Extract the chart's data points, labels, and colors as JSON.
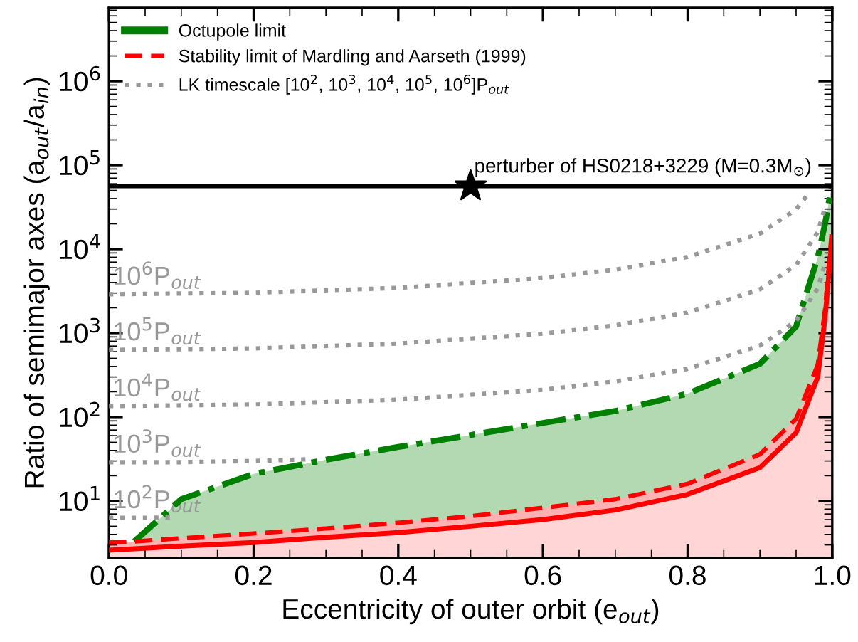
{
  "chart_data": {
    "type": "line",
    "log": "y",
    "legend": "top left",
    "xlabel": "Eccentricity of outer orbit (e$_{out}$)",
    "ylabel": "Ratio of semimajor axes (a$_{out}$/a$_{in}$)",
    "xlim": [
      0.0,
      1.0
    ],
    "xticks": [
      {
        "value": 0.0,
        "label": "0.0"
      },
      0.2,
      0.4,
      0.6,
      0.8,
      {
        "value": 1.0,
        "label": "1.0"
      }
    ],
    "ylim": [
      2.1,
      7500000
    ],
    "yticks": [
      {
        "value": 10,
        "label": "10$^{1}$"
      },
      {
        "value": 100,
        "label": "10$^{2}$"
      },
      {
        "value": 1000,
        "label": "10$^{3}$"
      },
      {
        "value": 10000,
        "label": "10$^{4}$"
      },
      {
        "value": 100000,
        "label": "10$^{5}$"
      },
      {
        "value": 1000000,
        "label": "10$^{6}$"
      }
    ],
    "x": [
      0.0,
      0.035,
      0.1,
      0.2,
      0.3,
      0.4,
      0.5,
      0.6,
      0.7,
      0.8,
      0.9,
      0.95,
      0.98,
      0.99,
      0.999
    ],
    "series": [
      {
        "type": "area",
        "name": "Octupole limit",
        "color": "#008000",
        "line_style": "dashdot",
        "values": [
          null,
          3.3,
          10.5,
          21,
          31,
          44,
          61,
          85,
          118,
          190,
          430,
          1200,
          8000,
          20000,
          55000
        ]
      },
      {
        "type": "area",
        "name": "Stability limit of Mardling and Aarseth (1999)",
        "color": "#ff0000",
        "line_style": "dashed",
        "values": [
          3.2,
          3.3,
          3.6,
          4.1,
          4.7,
          5.5,
          6.6,
          8.3,
          10.5,
          16,
          36,
          95,
          420,
          1900,
          15000
        ]
      },
      {
        "type": "area",
        "color": "#ff0000",
        "line_style": "solid",
        "values": [
          2.6,
          2.7,
          2.9,
          3.2,
          3.7,
          4.2,
          5.0,
          6.0,
          7.8,
          12,
          25,
          65,
          300,
          1500,
          12000
        ]
      },
      {
        "name": "LK timescale [10$^{2}$, 10$^{3}$, 10$^{4}$, 10$^{5}$, 10$^{6}$]P$_{out}$",
        "color": "#999999",
        "line_style": "dotted",
        "x": [
          0.0,
          0.05,
          0.09
        ],
        "values": [
          6.3,
          6.3,
          6.4
        ]
      },
      {
        "color": "#999999",
        "line_style": "dotted",
        "x": [
          0.0,
          0.1,
          0.2,
          0.28
        ],
        "values": [
          29,
          29,
          30,
          31.5
        ]
      },
      {
        "color": "#999999",
        "line_style": "dotted",
        "x": [
          0.0,
          0.2,
          0.4,
          0.6,
          0.7,
          0.8,
          0.9,
          0.95,
          0.98,
          0.99
        ],
        "values": [
          135,
          141,
          161,
          211,
          265,
          375,
          710,
          1390,
          3400,
          6800
        ]
      },
      {
        "color": "#999999",
        "line_style": "dotted",
        "x": [
          0.0,
          0.2,
          0.4,
          0.6,
          0.7,
          0.8,
          0.9,
          0.95,
          0.98,
          0.99
        ],
        "values": [
          630,
          656,
          750,
          984,
          1235,
          1750,
          3316,
          6462,
          15900,
          31700
        ]
      },
      {
        "color": "#999999",
        "line_style": "dotted",
        "x": [
          0.0,
          0.2,
          0.4,
          0.6,
          0.7,
          0.8,
          0.9,
          0.95,
          0.97
        ],
        "values": [
          2900,
          3020,
          3450,
          4530,
          5690,
          8060,
          15300,
          29700,
          49000
        ]
      },
      {
        "type": "scatter",
        "color": "#000000",
        "marker": "star",
        "x": [
          0.5
        ],
        "values": [
          56000
        ]
      }
    ],
    "ref_lines": [
      {
        "axis": "y",
        "value": 56000,
        "color": "#000000"
      }
    ],
    "annotations": [
      "perturber of HS0218+3229 (M=0.3M$_{⊙}$)",
      "10$^{2}$P$_{out}$",
      "10$^{3}$P$_{out}$",
      "10$^{4}$P$_{out}$",
      "10$^{5}$P$_{out}$",
      "10$^{6}$P$_{out}$"
    ]
  }
}
